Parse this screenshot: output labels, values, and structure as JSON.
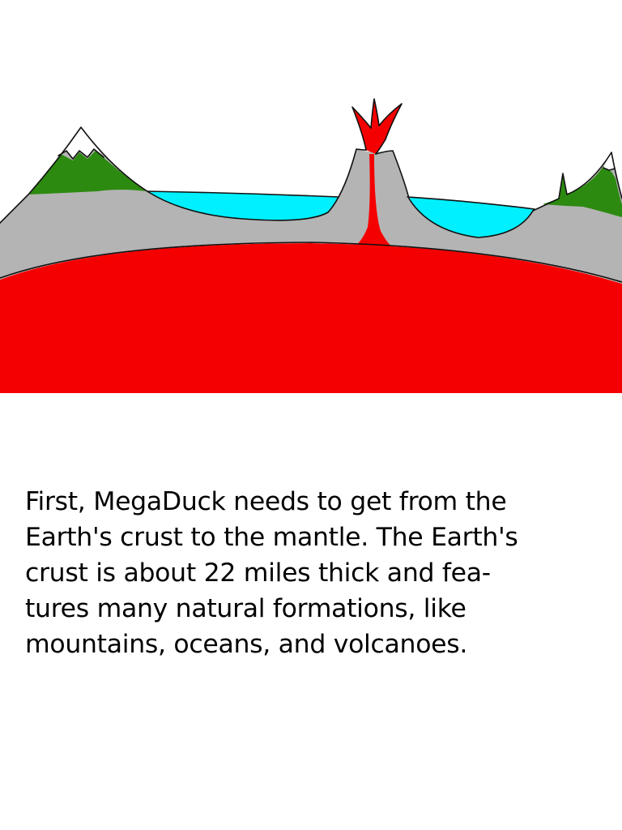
{
  "page": {
    "colors": {
      "background": "#ffffff",
      "mantle": "#f50000",
      "crust": "#b4b4b4",
      "ocean": "#00f0ff",
      "grass": "#2c8a10",
      "snow": "#ffffff",
      "outline": "#111111",
      "text": "#000000"
    }
  },
  "illustration": {
    "icon": "earth-crust-cross-section-icon",
    "elements": [
      "mountain",
      "ocean",
      "volcano",
      "lava",
      "crust",
      "mantle"
    ]
  },
  "story": {
    "lines": [
      "First, MegaDuck needs to get from the",
      "Earth's crust to the mantle. The Earth's",
      "crust is about 22 miles thick and fea-",
      "tures many natural formations, like",
      "mountains, oceans, and volcanoes."
    ]
  }
}
